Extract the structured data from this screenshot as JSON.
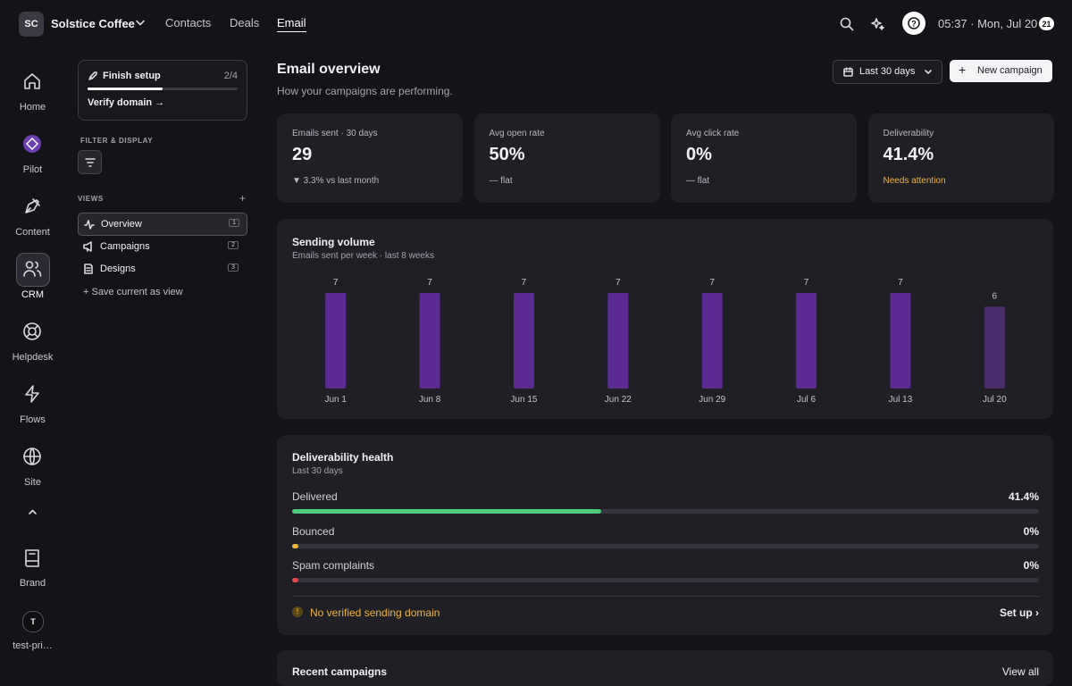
{
  "topbar": {
    "initials": "SC",
    "workspace": "Solstice Coffee",
    "nav": [
      "Contacts",
      "Deals",
      "Email"
    ],
    "active_nav": 2,
    "clock": "05:37 · Mon, Jul 20",
    "badge": "21"
  },
  "rail": {
    "items": [
      "Home",
      "Pilot",
      "Content",
      "CRM",
      "Helpdesk",
      "Flows",
      "Site"
    ],
    "active": 3,
    "brand": "Brand",
    "avatar": "T",
    "user": "test-pri…"
  },
  "panel": {
    "setup_title": "Finish setup",
    "setup_progress": "2/4",
    "setup_action": "Verify domain →",
    "filter_heading": "FILTER & DISPLAY",
    "views_heading": "VIEWS",
    "views_add": "+",
    "views": [
      {
        "label": "Overview",
        "count": "1"
      },
      {
        "label": "Campaigns",
        "count": "2"
      },
      {
        "label": "Designs",
        "count": "3"
      }
    ],
    "save_view": "+ Save current as view"
  },
  "header": {
    "title": "Email overview",
    "subtitle": "How your campaigns are performing.",
    "range": "Last 30 days",
    "button": "New campaign"
  },
  "stats": [
    {
      "label": "Emails sent · 30 days",
      "value": "29",
      "note": "▼ 3.3% vs last month"
    },
    {
      "label": "Avg open rate",
      "value": "50%",
      "note": "— flat"
    },
    {
      "label": "Avg click rate",
      "value": "0%",
      "note": "— flat"
    },
    {
      "label": "Deliverability",
      "value": "41.4%",
      "note": "Needs attention",
      "warn": true
    }
  ],
  "chart_data": {
    "type": "bar",
    "title": "Sending volume",
    "subtitle": "Emails sent per week · last 8 weeks",
    "categories": [
      "Jun 1",
      "Jun 8",
      "Jun 15",
      "Jun 22",
      "Jun 29",
      "Jul 6",
      "Jul 13",
      "Jul 20"
    ],
    "values": [
      7,
      7,
      7,
      7,
      7,
      7,
      7,
      6
    ],
    "color": "#5c2a93",
    "current_color": "#4a2e6c"
  },
  "health": {
    "title": "Deliverability health",
    "subtitle": "Last 30 days",
    "rows": [
      {
        "label": "Delivered",
        "value": 41.4,
        "value_label": "41.4%",
        "color": "#4fcb7c"
      },
      {
        "label": "Bounced",
        "value": 0,
        "value_label": "0%",
        "color": "#f0b43c"
      },
      {
        "label": "Spam complaints",
        "value": 0,
        "value_label": "0%",
        "color": "#e5484d"
      }
    ],
    "warning": "No verified sending domain",
    "action": "Set up ›"
  },
  "recent": {
    "title": "Recent campaigns",
    "link": "View all"
  }
}
